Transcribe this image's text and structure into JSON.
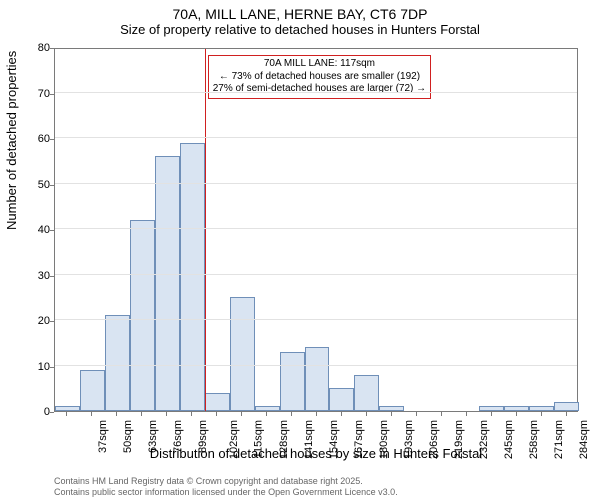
{
  "title": "70A, MILL LANE, HERNE BAY, CT6 7DP",
  "subtitle": "Size of property relative to detached houses in Hunters Forstal",
  "xlabel": "Distribution of detached houses by size in Hunters Forstal",
  "ylabel": "Number of detached properties",
  "footer_line1": "Contains HM Land Registry data © Crown copyright and database right 2025.",
  "footer_line2": "Contains public sector information licensed under the Open Government Licence v3.0.",
  "chart": {
    "type": "histogram",
    "ylim": [
      0,
      80
    ],
    "ytick_step": 10,
    "xlim_bins": 21,
    "x_start": 37,
    "x_step": 13,
    "x_unit": "sqm",
    "bar_color": "#d9e4f2",
    "bar_border": "#6f8fb8",
    "grid_color": "#e2e2e2",
    "axis_color": "#7a7a7a",
    "background_color": "#ffffff",
    "bar_width_ratio": 1.0,
    "values": [
      1,
      9,
      21,
      42,
      56,
      59,
      4,
      25,
      1,
      13,
      14,
      5,
      8,
      1,
      0,
      0,
      0,
      1,
      1,
      1,
      2
    ],
    "reference": {
      "bin_edge_index": 6,
      "color": "#d02020",
      "line_width": 1.5,
      "label_lines": [
        "70A MILL LANE: 117sqm",
        "← 73% of detached houses are smaller (192)",
        "27% of semi-detached houses are larger (72) →"
      ]
    }
  },
  "fontsize": {
    "title": 14,
    "subtitle": 13,
    "axis_label": 13,
    "tick": 11,
    "annot": 10,
    "footer": 9
  },
  "text_color": "#000000",
  "footer_color": "#666666"
}
